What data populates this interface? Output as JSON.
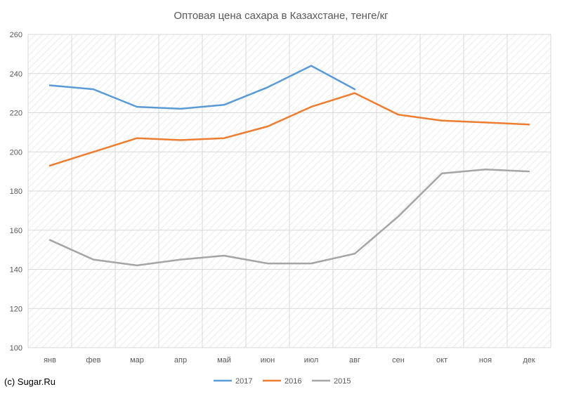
{
  "chart_data": {
    "type": "line",
    "title": "Оптовая цена сахара в Казахстане, тенге/кг",
    "categories": [
      "янв",
      "фев",
      "мар",
      "апр",
      "май",
      "июн",
      "июл",
      "авг",
      "сен",
      "окт",
      "ноя",
      "дек"
    ],
    "ylim": [
      100,
      260
    ],
    "yticks": [
      100,
      120,
      140,
      160,
      180,
      200,
      220,
      240,
      260
    ],
    "grid": true,
    "legend_position": "bottom",
    "series": [
      {
        "name": "2017",
        "color": "#5B9BD5",
        "values": [
          234,
          232,
          223,
          222,
          224,
          233,
          244,
          232,
          null,
          null,
          null,
          null
        ]
      },
      {
        "name": "2016",
        "color": "#ED7D31",
        "values": [
          193,
          200,
          207,
          206,
          207,
          213,
          223,
          230,
          219,
          216,
          215,
          214
        ]
      },
      {
        "name": "2015",
        "color": "#A5A5A5",
        "values": [
          155,
          145,
          142,
          145,
          147,
          143,
          143,
          148,
          167,
          189,
          191,
          190
        ]
      }
    ]
  },
  "footer": {
    "copyright": "(c) Sugar.Ru"
  }
}
